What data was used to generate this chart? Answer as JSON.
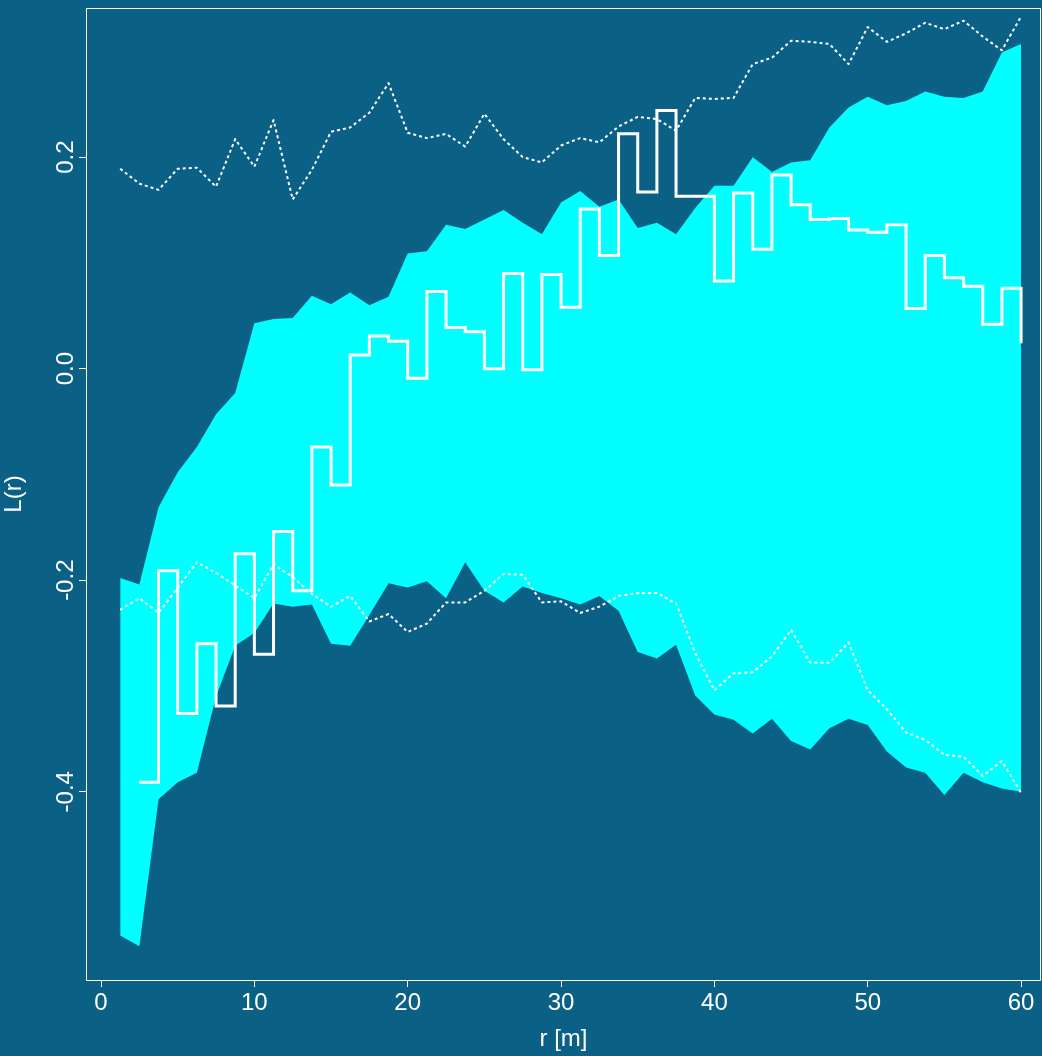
{
  "chart_data": {
    "type": "line",
    "xlabel": "r [m]",
    "ylabel": "L(r)",
    "x": [
      1.25,
      2.5,
      3.75,
      5,
      6.25,
      7.5,
      8.75,
      10,
      11.25,
      12.5,
      13.75,
      15,
      16.25,
      17.5,
      18.75,
      20,
      21.25,
      22.5,
      23.75,
      25,
      26.25,
      27.5,
      28.75,
      30,
      31.25,
      32.5,
      33.75,
      35,
      36.25,
      37.5,
      38.75,
      40,
      41.25,
      42.5,
      43.75,
      45,
      46.25,
      47.5,
      48.75,
      50,
      51.25,
      52.5,
      53.75,
      55,
      56.25,
      57.5,
      58.75,
      60
    ],
    "series": [
      {
        "type": "line",
        "color": "#ffffff",
        "line_style": "dotted",
        "values": [
          0.189,
          0.175,
          0.169,
          0.189,
          0.19,
          0.172,
          0.217,
          0.191,
          0.235,
          0.16,
          0.188,
          0.224,
          0.228,
          0.242,
          0.27,
          0.223,
          0.218,
          0.222,
          0.21,
          0.241,
          0.217,
          0.2,
          0.195,
          0.211,
          0.218,
          0.214,
          0.229,
          0.238,
          0.236,
          0.225,
          0.256,
          0.255,
          0.256,
          0.288,
          0.294,
          0.31,
          0.309,
          0.307,
          0.288,
          0.323,
          0.309,
          0.317,
          0.327,
          0.321,
          0.329,
          0.314,
          0.301,
          0.333
        ]
      },
      {
        "type": "line",
        "color": "#ffffff",
        "line_style": "dotted",
        "values": [
          -0.228,
          -0.217,
          -0.231,
          -0.207,
          -0.183,
          -0.193,
          -0.205,
          -0.217,
          -0.185,
          -0.197,
          -0.213,
          -0.225,
          -0.215,
          -0.239,
          -0.232,
          -0.249,
          -0.241,
          -0.221,
          -0.221,
          -0.21,
          -0.194,
          -0.195,
          -0.221,
          -0.22,
          -0.231,
          -0.225,
          -0.215,
          -0.212,
          -0.212,
          -0.222,
          -0.269,
          -0.304,
          -0.288,
          -0.287,
          -0.272,
          -0.247,
          -0.278,
          -0.278,
          -0.259,
          -0.304,
          -0.322,
          -0.344,
          -0.351,
          -0.365,
          -0.367,
          -0.385,
          -0.371,
          -0.401
        ]
      },
      {
        "type": "area",
        "color": "#00ffff",
        "values": [
          null,
          null,
          null,
          null,
          null,
          null,
          null,
          null,
          null,
          null,
          null,
          null,
          null,
          null,
          null,
          null,
          null,
          null,
          null,
          null,
          null,
          null,
          null,
          null,
          null,
          null,
          null,
          null,
          null,
          null,
          null,
          null,
          null,
          null,
          null,
          null,
          null,
          null,
          null,
          null,
          null,
          null,
          null,
          null,
          null,
          null,
          null,
          null
        ],
        "lower": [
          -0.536,
          -0.546,
          -0.407,
          -0.391,
          -0.382,
          -0.31,
          -0.262,
          -0.25,
          -0.222,
          -0.225,
          -0.223,
          -0.26,
          -0.262,
          -0.233,
          -0.203,
          -0.207,
          -0.201,
          -0.217,
          -0.183,
          -0.21,
          -0.221,
          -0.206,
          -0.212,
          -0.217,
          -0.223,
          -0.215,
          -0.229,
          -0.268,
          -0.274,
          -0.261,
          -0.309,
          -0.327,
          -0.332,
          -0.345,
          -0.331,
          -0.352,
          -0.36,
          -0.34,
          -0.331,
          -0.337,
          -0.362,
          -0.377,
          -0.382,
          -0.403,
          -0.382,
          -0.391,
          -0.397,
          -0.4
        ],
        "upper": [
          -0.198,
          -0.204,
          -0.131,
          -0.098,
          -0.074,
          -0.043,
          -0.023,
          0.043,
          0.047,
          0.048,
          0.069,
          0.061,
          0.072,
          0.06,
          0.068,
          0.109,
          0.111,
          0.136,
          0.132,
          0.141,
          0.15,
          0.138,
          0.127,
          0.157,
          0.168,
          0.153,
          0.16,
          0.133,
          0.138,
          0.127,
          0.152,
          0.173,
          0.173,
          0.2,
          0.186,
          0.195,
          0.197,
          0.228,
          0.247,
          0.257,
          0.249,
          0.253,
          0.262,
          0.257,
          0.256,
          0.262,
          0.299,
          0.307
        ]
      },
      {
        "type": "step",
        "color": "#ffffff",
        "values": [
          null,
          -0.391,
          -0.191,
          -0.326,
          -0.26,
          -0.319,
          -0.175,
          -0.27,
          -0.154,
          -0.21,
          -0.074,
          -0.11,
          0.013,
          0.031,
          0.026,
          -0.009,
          0.073,
          0.039,
          0.035,
          0.0,
          0.09,
          -0.001,
          0.089,
          0.058,
          0.151,
          0.107,
          0.222,
          0.167,
          0.244,
          0.163,
          0.163,
          0.083,
          0.166,
          0.113,
          0.183,
          0.155,
          0.141,
          0.142,
          0.131,
          0.129,
          0.136,
          0.057,
          0.107,
          0.086,
          0.078,
          0.042,
          0.076,
          0.024
        ]
      }
    ],
    "xlim": [
      -0.98,
      61.3
    ],
    "ylim": [
      -0.578,
      0.341
    ],
    "xticks": [
      0,
      10,
      20,
      30,
      40,
      50,
      60
    ],
    "yticks": [
      -0.4,
      -0.2,
      {
        "value": 0,
        "label": "0.0"
      },
      0.2
    ]
  }
}
